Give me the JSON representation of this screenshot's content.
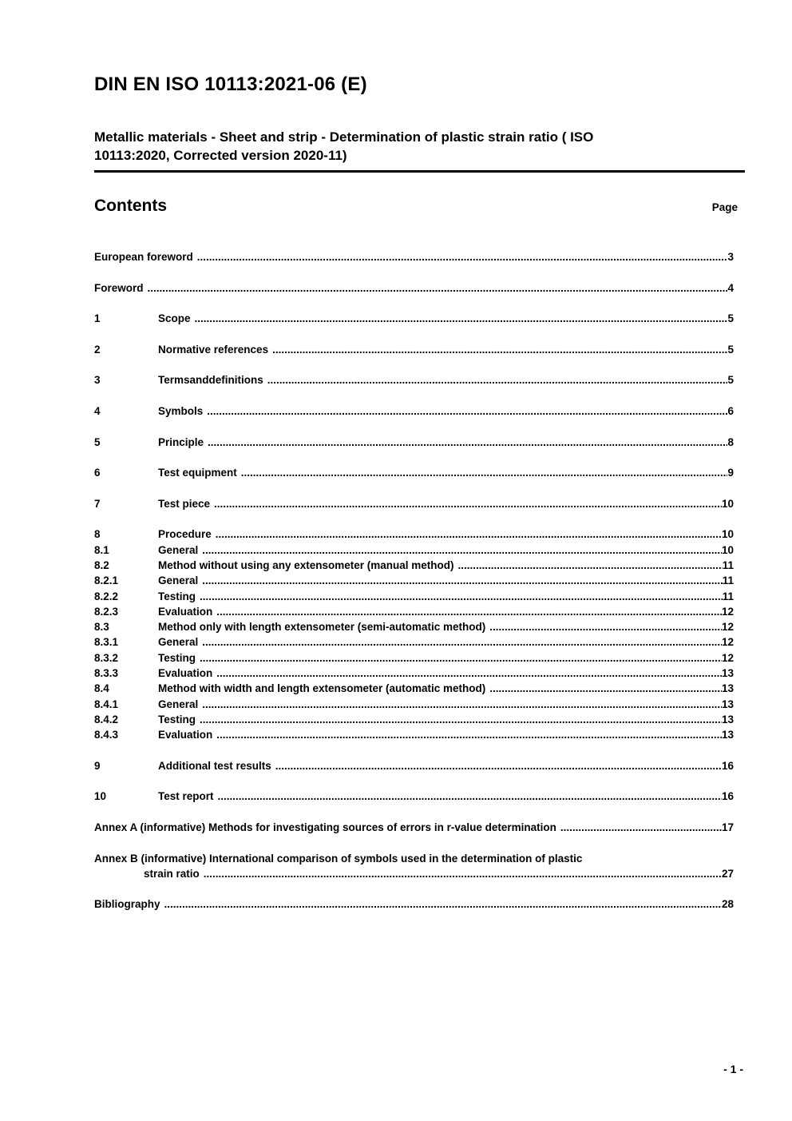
{
  "colors": {
    "text": "#000000",
    "background": "#ffffff"
  },
  "header": {
    "doc_code": "DIN EN ISO 10113:2021-06 (E)",
    "subtitle_line1": "Metallic materials - Sheet and strip - Determination of plastic strain ratio ( ISO",
    "subtitle_line2": "10113:2020, Corrected version 2020-11)"
  },
  "contents": {
    "heading": "Contents",
    "page_label": "Page"
  },
  "toc": {
    "groups": [
      {
        "entries": [
          {
            "num": "",
            "title": "European foreword",
            "page": "3"
          }
        ]
      },
      {
        "entries": [
          {
            "num": "",
            "title": "Foreword",
            "page": "4"
          }
        ]
      },
      {
        "entries": [
          {
            "num": "1",
            "title": "Scope",
            "page": "5"
          }
        ]
      },
      {
        "entries": [
          {
            "num": "2",
            "title": "Normative references",
            "page": "5"
          }
        ]
      },
      {
        "entries": [
          {
            "num": "3",
            "title": "Termsanddefinitions",
            "page": "5"
          }
        ]
      },
      {
        "entries": [
          {
            "num": "4",
            "title": "Symbols",
            "page": "6"
          }
        ]
      },
      {
        "entries": [
          {
            "num": "5",
            "title": "Principle",
            "page": "8"
          }
        ]
      },
      {
        "entries": [
          {
            "num": "6",
            "title": "Test equipment",
            "page": "9"
          }
        ]
      },
      {
        "entries": [
          {
            "num": "7",
            "title": "Test piece",
            "page": "10"
          }
        ]
      },
      {
        "entries": [
          {
            "num": "8",
            "title": "Procedure",
            "page": "10"
          },
          {
            "num": "8.1",
            "title": "General",
            "page": "10"
          },
          {
            "num": "8.2",
            "title": "Method without using any extensometer (manual method)",
            "page": "11"
          },
          {
            "num": "8.2.1",
            "title": "General",
            "page": "11"
          },
          {
            "num": "8.2.2",
            "title": "Testing",
            "page": "11"
          },
          {
            "num": "8.2.3",
            "title": "Evaluation",
            "page": "12"
          },
          {
            "num": "8.3",
            "title": "Method only with length extensometer (semi-automatic method)",
            "page": "12"
          },
          {
            "num": "8.3.1",
            "title": "General",
            "page": "12"
          },
          {
            "num": "8.3.2",
            "title": "Testing",
            "page": "12"
          },
          {
            "num": "8.3.3",
            "title": "Evaluation",
            "page": "13"
          },
          {
            "num": "8.4",
            "title": "Method with width and length extensometer (automatic method)",
            "page": "13"
          },
          {
            "num": "8.4.1",
            "title": "General",
            "page": "13"
          },
          {
            "num": "8.4.2",
            "title": "Testing",
            "page": "13"
          },
          {
            "num": "8.4.3",
            "title": "Evaluation",
            "page": "13"
          }
        ]
      },
      {
        "entries": [
          {
            "num": "9",
            "title": "Additional test results",
            "page": "16"
          }
        ]
      },
      {
        "entries": [
          {
            "num": "10",
            "title": "Test report",
            "page": "16"
          }
        ]
      },
      {
        "entries": [
          {
            "num": "",
            "title": "Annex A (informative) Methods for investigating sources of errors in r-value determination",
            "page": "17"
          }
        ]
      },
      {
        "entries": [
          {
            "num": "",
            "title": "Annex B (informative) International comparison of symbols used in the determination of plastic",
            "title_cont": "strain ratio",
            "page": "27"
          }
        ]
      },
      {
        "entries": [
          {
            "num": "",
            "title": "Bibliography",
            "page": "28"
          }
        ]
      }
    ]
  },
  "footer": {
    "page_number": "- 1 -"
  }
}
